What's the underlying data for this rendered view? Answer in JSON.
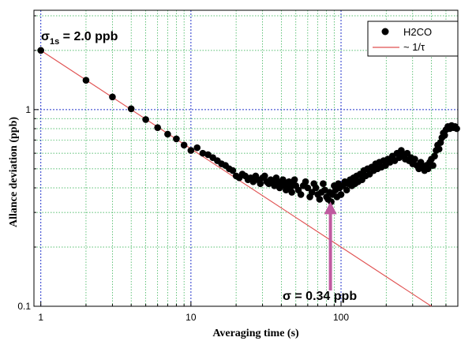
{
  "chart_data": {
    "type": "scatter",
    "xlabel": "Averaging time (s)",
    "ylabel": "Allance deviation (ppb)",
    "x_scale": "log",
    "y_scale": "log",
    "xlim": [
      0.9,
      600
    ],
    "ylim": [
      0.1,
      3.2
    ],
    "x_ticks": [
      {
        "value": 1,
        "label": "1"
      },
      {
        "value": 10,
        "label": "10"
      },
      {
        "value": 100,
        "label": "100"
      }
    ],
    "y_ticks": [
      {
        "value": 0.1,
        "label": "0.1"
      },
      {
        "value": 1,
        "label": "1"
      }
    ],
    "grid": true,
    "legend": {
      "position": "top-right",
      "entries": [
        {
          "label": "H2CO",
          "marker": "filled-circle",
          "color": "#000000"
        },
        {
          "label": "~ 1/τ",
          "marker": "line",
          "color": "#e05050"
        }
      ]
    },
    "annotations": {
      "sigma_1s": {
        "symbol": "σ",
        "subscript": "1s",
        "text": " = 2.0 ppb"
      },
      "sigma_min": {
        "text": "σ = 0.34 ppb",
        "arrow_x": 85,
        "arrow_y_top": 0.36,
        "arrow_y_bottom": 0.2
      }
    },
    "series": [
      {
        "name": "H2CO",
        "color": "#000000",
        "points": [
          [
            1,
            2.0
          ],
          [
            2,
            1.41
          ],
          [
            3,
            1.16
          ],
          [
            4,
            1.01
          ],
          [
            5,
            0.89
          ],
          [
            6,
            0.81
          ],
          [
            7,
            0.75
          ],
          [
            8,
            0.71
          ],
          [
            9,
            0.66
          ],
          [
            10,
            0.62
          ],
          [
            11,
            0.64
          ],
          [
            12,
            0.6
          ],
          [
            13,
            0.59
          ],
          [
            14,
            0.57
          ],
          [
            15,
            0.55
          ],
          [
            16,
            0.53
          ],
          [
            17,
            0.52
          ],
          [
            18,
            0.5
          ],
          [
            19,
            0.49
          ],
          [
            20,
            0.46
          ],
          [
            21,
            0.45
          ],
          [
            22,
            0.47
          ],
          [
            23,
            0.46
          ],
          [
            24,
            0.44
          ],
          [
            25,
            0.45
          ],
          [
            26,
            0.43
          ],
          [
            27,
            0.46
          ],
          [
            28,
            0.44
          ],
          [
            29,
            0.42
          ],
          [
            30,
            0.45
          ],
          [
            31,
            0.46
          ],
          [
            32,
            0.43
          ],
          [
            33,
            0.42
          ],
          [
            34,
            0.44
          ],
          [
            35,
            0.43
          ],
          [
            36,
            0.41
          ],
          [
            37,
            0.45
          ],
          [
            38,
            0.42
          ],
          [
            39,
            0.4
          ],
          [
            40,
            0.43
          ],
          [
            41,
            0.44
          ],
          [
            42,
            0.41
          ],
          [
            43,
            0.39
          ],
          [
            44,
            0.42
          ],
          [
            45,
            0.43
          ],
          [
            46,
            0.4
          ],
          [
            47,
            0.38
          ],
          [
            48,
            0.42
          ],
          [
            49,
            0.44
          ],
          [
            50,
            0.41
          ],
          [
            52,
            0.39
          ],
          [
            54,
            0.37
          ],
          [
            56,
            0.41
          ],
          [
            58,
            0.43
          ],
          [
            60,
            0.4
          ],
          [
            62,
            0.36
          ],
          [
            64,
            0.38
          ],
          [
            66,
            0.42
          ],
          [
            68,
            0.4
          ],
          [
            70,
            0.37
          ],
          [
            72,
            0.35
          ],
          [
            74,
            0.38
          ],
          [
            76,
            0.42
          ],
          [
            78,
            0.39
          ],
          [
            80,
            0.36
          ],
          [
            82,
            0.35
          ],
          [
            84,
            0.38
          ],
          [
            86,
            0.34
          ],
          [
            88,
            0.37
          ],
          [
            90,
            0.41
          ],
          [
            92,
            0.39
          ],
          [
            94,
            0.36
          ],
          [
            96,
            0.42
          ],
          [
            98,
            0.4
          ],
          [
            100,
            0.37
          ],
          [
            103,
            0.41
          ],
          [
            106,
            0.43
          ],
          [
            109,
            0.39
          ],
          [
            112,
            0.42
          ],
          [
            115,
            0.44
          ],
          [
            118,
            0.41
          ],
          [
            121,
            0.45
          ],
          [
            124,
            0.42
          ],
          [
            127,
            0.46
          ],
          [
            130,
            0.43
          ],
          [
            134,
            0.47
          ],
          [
            138,
            0.44
          ],
          [
            142,
            0.49
          ],
          [
            146,
            0.46
          ],
          [
            150,
            0.5
          ],
          [
            155,
            0.47
          ],
          [
            160,
            0.51
          ],
          [
            165,
            0.49
          ],
          [
            170,
            0.53
          ],
          [
            175,
            0.5
          ],
          [
            180,
            0.54
          ],
          [
            186,
            0.51
          ],
          [
            192,
            0.55
          ],
          [
            198,
            0.52
          ],
          [
            205,
            0.56
          ],
          [
            212,
            0.54
          ],
          [
            220,
            0.58
          ],
          [
            228,
            0.55
          ],
          [
            236,
            0.6
          ],
          [
            244,
            0.57
          ],
          [
            252,
            0.62
          ],
          [
            260,
            0.59
          ],
          [
            268,
            0.56
          ],
          [
            276,
            0.6
          ],
          [
            284,
            0.55
          ],
          [
            292,
            0.57
          ],
          [
            300,
            0.53
          ],
          [
            310,
            0.56
          ],
          [
            320,
            0.52
          ],
          [
            330,
            0.5
          ],
          [
            340,
            0.54
          ],
          [
            350,
            0.51
          ],
          [
            360,
            0.49
          ],
          [
            370,
            0.52
          ],
          [
            380,
            0.5
          ],
          [
            390,
            0.54
          ],
          [
            400,
            0.56
          ],
          [
            410,
            0.52
          ],
          [
            420,
            0.58
          ],
          [
            430,
            0.62
          ],
          [
            440,
            0.66
          ],
          [
            450,
            0.63
          ],
          [
            460,
            0.68
          ],
          [
            470,
            0.72
          ],
          [
            480,
            0.76
          ],
          [
            490,
            0.74
          ],
          [
            500,
            0.79
          ],
          [
            515,
            0.82
          ],
          [
            530,
            0.8
          ],
          [
            545,
            0.83
          ],
          [
            560,
            0.81
          ],
          [
            575,
            0.82
          ],
          [
            590,
            0.8
          ]
        ]
      },
      {
        "name": "~ 1/τ",
        "color": "#e05050",
        "line": [
          [
            1,
            2.0
          ],
          [
            400,
            0.1
          ]
        ]
      }
    ]
  }
}
